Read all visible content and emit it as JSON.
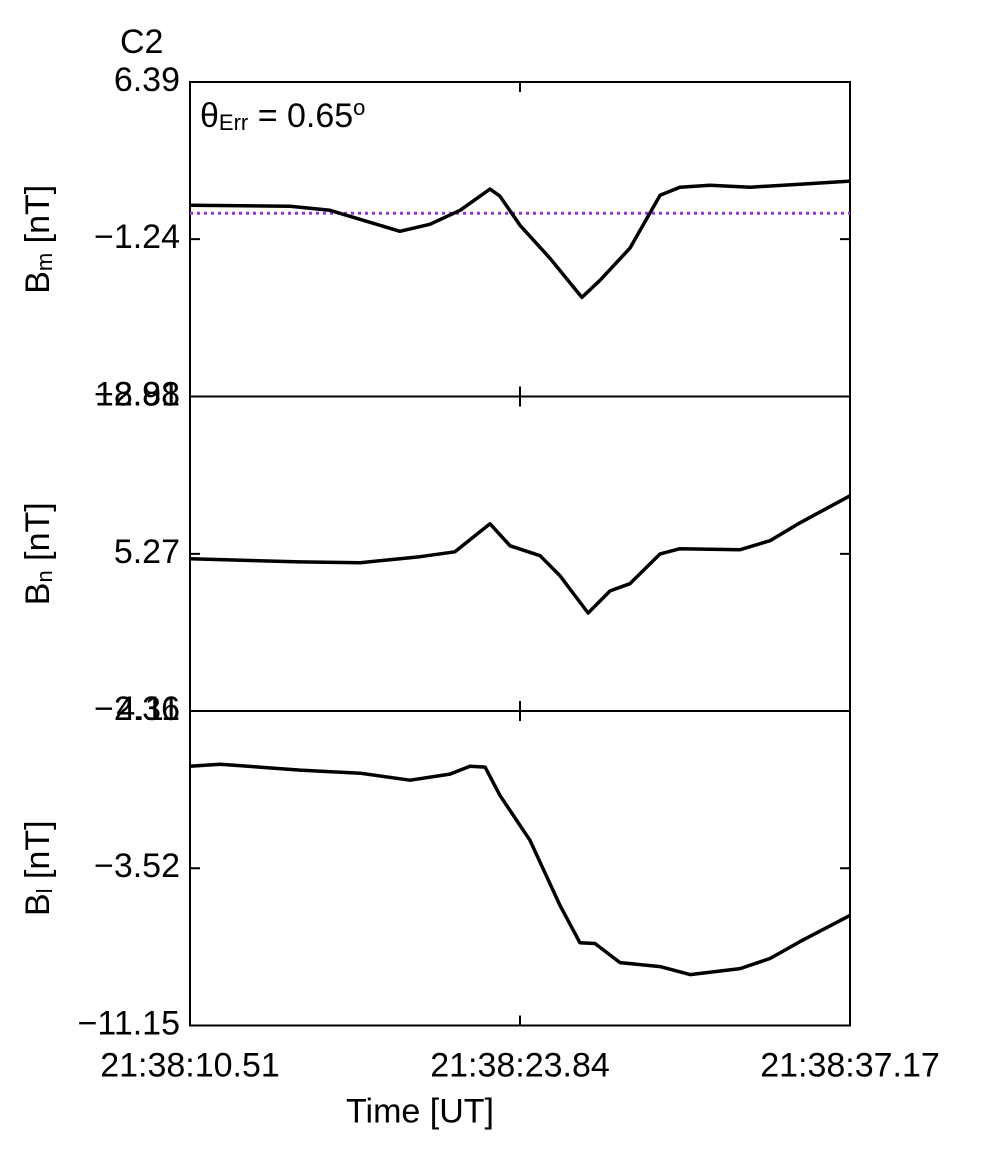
{
  "chart_data": [
    {
      "type": "line",
      "title": "C2",
      "title_color": "#ee0000",
      "annotation": {
        "text": "θ",
        "sub": "Err",
        "rest": " =  0.65",
        "sup": "o"
      },
      "reference_line": {
        "value": 0.02,
        "color": "#9933dd"
      },
      "ylabel": {
        "text": "B",
        "sub": "m",
        "rest": " [nT]"
      },
      "ylim": [
        -8.88,
        6.39
      ],
      "yticks": [
        {
          "value": -8.88,
          "label": "−8.88"
        },
        {
          "value": -1.24,
          "label": "−1.24"
        },
        6.39
      ],
      "color": "#000000",
      "x": [
        10.51,
        14.55,
        16.16,
        17.78,
        18.99,
        20.2,
        21.42,
        22.63,
        23.03,
        23.84,
        25.05,
        26.34,
        27.07,
        28.28,
        29.5,
        30.3,
        31.51,
        33.13,
        35.15,
        37.17
      ],
      "values": [
        0.41,
        0.36,
        0.16,
        -0.42,
        -0.86,
        -0.52,
        0.16,
        1.19,
        0.85,
        -0.57,
        -2.17,
        -4.07,
        -3.24,
        -1.68,
        0.89,
        1.28,
        1.38,
        1.28,
        1.43,
        1.58
      ]
    },
    {
      "type": "line",
      "ylabel": {
        "text": "B",
        "sub": "n",
        "rest": " [nT]"
      },
      "ylim": [
        -2.36,
        12.91
      ],
      "yticks": [
        {
          "value": -2.36,
          "label": "−2.36"
        },
        5.27,
        12.91
      ],
      "color": "#000000",
      "x": [
        10.51,
        14.95,
        17.38,
        19.8,
        21.21,
        22.63,
        23.44,
        24.65,
        25.46,
        26.59,
        27.48,
        28.28,
        29.5,
        30.3,
        32.73,
        33.94,
        35.15,
        37.17
      ],
      "values": [
        5.03,
        4.88,
        4.84,
        5.13,
        5.37,
        6.73,
        5.66,
        5.18,
        4.2,
        2.4,
        3.47,
        3.82,
        5.27,
        5.52,
        5.47,
        5.91,
        6.78,
        8.09
      ]
    },
    {
      "type": "line",
      "ylabel": {
        "text": "B",
        "sub": "l",
        "rest": " [nT]"
      },
      "ylim": [
        -11.15,
        4.11
      ],
      "yticks": [
        {
          "value": -11.15,
          "label": "−11.15"
        },
        {
          "value": -3.52,
          "label": "−3.52"
        },
        4.11
      ],
      "xlabel": "Time [UT]",
      "xlim": [
        10.51,
        37.17
      ],
      "xticks": [
        {
          "value": 10.51,
          "label": "21:38:10.51"
        },
        {
          "value": 23.84,
          "label": "21:38:23.84"
        },
        {
          "value": 37.17,
          "label": "21:38:37.17"
        }
      ],
      "color": "#000000",
      "x": [
        10.51,
        11.72,
        14.95,
        17.38,
        19.4,
        21.01,
        21.82,
        22.43,
        23.03,
        24.24,
        25.46,
        26.26,
        26.87,
        27.88,
        29.5,
        30.71,
        32.73,
        33.94,
        35.15,
        37.17
      ],
      "values": [
        1.43,
        1.53,
        1.24,
        1.09,
        0.75,
        1.05,
        1.43,
        1.39,
        0.02,
        -2.16,
        -5.33,
        -7.13,
        -7.17,
        -8.1,
        -8.29,
        -8.68,
        -8.39,
        -7.9,
        -7.08,
        -5.81
      ]
    }
  ]
}
